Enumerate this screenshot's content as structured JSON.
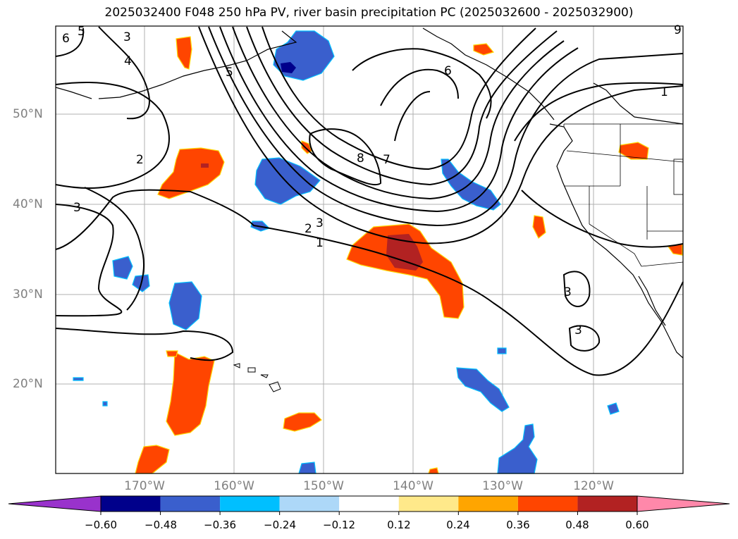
{
  "title": "2025032400 F048 250 hPa PV, river basin precipitation PC (2025032600 - 2025032900)",
  "axes": {
    "lat_labels": [
      "50°N",
      "40°N",
      "30°N",
      "20°N"
    ],
    "lon_labels": [
      "170°W",
      "160°W",
      "150°W",
      "140°W",
      "130°W",
      "120°W"
    ]
  },
  "contour_labels": [
    "1",
    "2",
    "3",
    "4",
    "5",
    "6",
    "7",
    "8",
    "9"
  ],
  "colorbar": {
    "ticks": [
      "−0.60",
      "−0.48",
      "−0.36",
      "−0.24",
      "−0.12",
      "0.12",
      "0.24",
      "0.36",
      "0.48",
      "0.60"
    ],
    "colors": [
      "#9932cc",
      "#00008b",
      "#3a5fcd",
      "#00bfff",
      "#add8f8",
      "#ffffff",
      "#ffe98a",
      "#ffa500",
      "#ff4500",
      "#b22222",
      "#ff88aa"
    ]
  },
  "colors": {
    "negative_pc": "#3a5fcd",
    "positive_pc": "#ff4500",
    "contour": "#000000",
    "grid": "#b0b0b0"
  }
}
